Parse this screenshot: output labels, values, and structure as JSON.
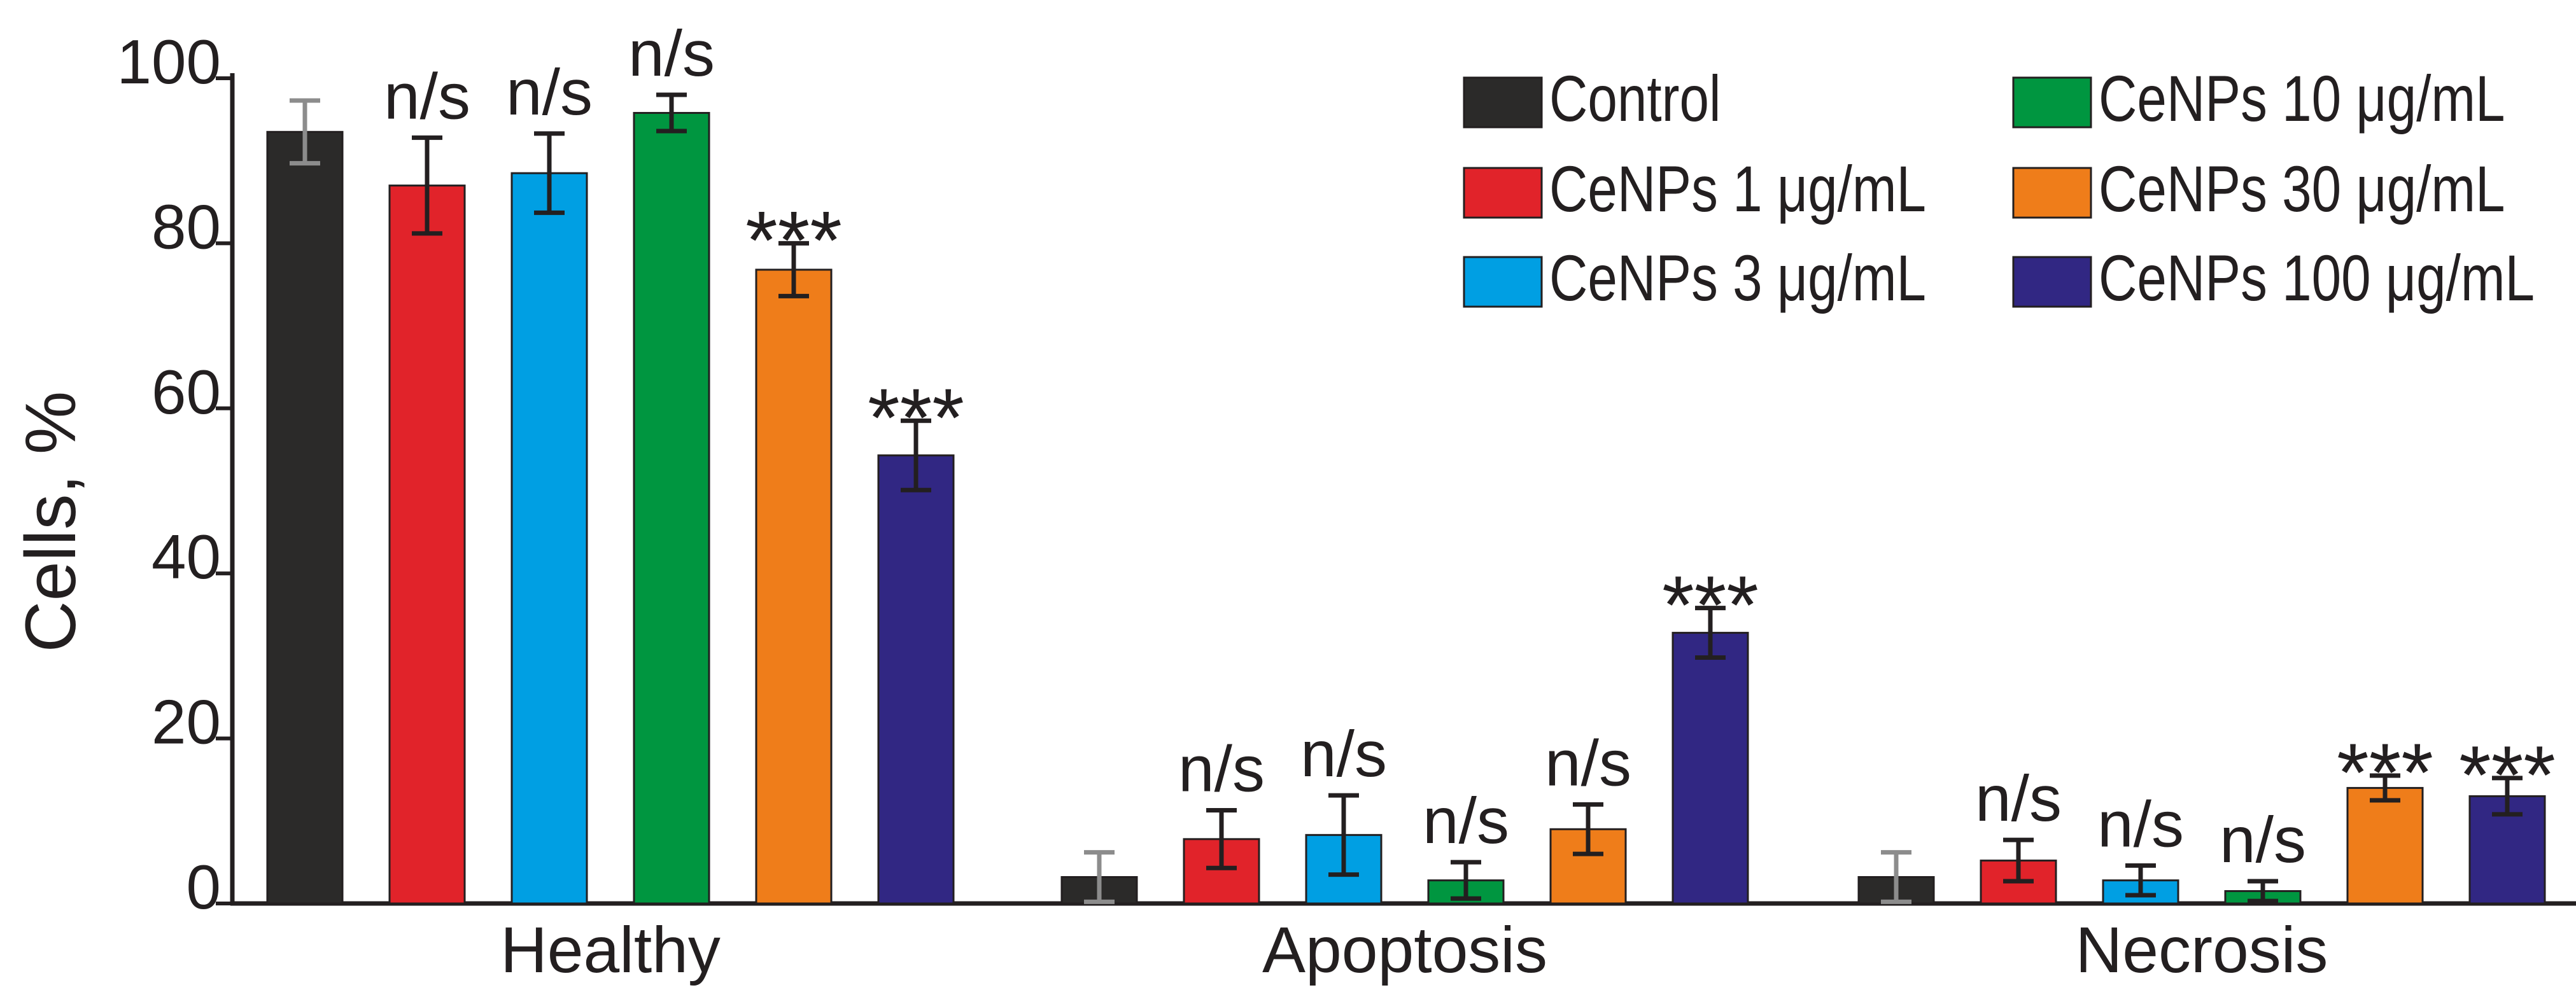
{
  "chart_data": {
    "type": "bar",
    "title": "",
    "xlabel": "",
    "ylabel": "Cells, %",
    "ylim": [
      0,
      100
    ],
    "yticks": [
      "0",
      "20",
      "40",
      "60",
      "80",
      "100"
    ],
    "ytick_values": [
      0,
      20,
      40,
      60,
      80,
      100
    ],
    "grid": false,
    "legend_position": "top-right",
    "categories": [
      "Healthy",
      "Apoptosis",
      "Necrosis"
    ],
    "series": [
      {
        "name": "Control",
        "color": "#2b2a29",
        "err_color": "#8c8c8c",
        "values": [
          93.5,
          3.2,
          3.2
        ],
        "errors": [
          3.8,
          3.0,
          3.0
        ],
        "annotations": [
          "",
          "",
          ""
        ]
      },
      {
        "name": "CeNPs 1 μg/mL",
        "color": "#e1232a",
        "err_color": "#231f20",
        "values": [
          87,
          7.8,
          5.2
        ],
        "errors": [
          5.8,
          3.5,
          2.5
        ],
        "annotations": [
          "n/s",
          "n/s",
          "n/s"
        ]
      },
      {
        "name": "CeNPs 3 μg/mL",
        "color": "#009fe3",
        "err_color": "#231f20",
        "values": [
          88.5,
          8.3,
          2.8
        ],
        "errors": [
          4.8,
          4.8,
          1.8
        ],
        "annotations": [
          "n/s",
          "n/s",
          "n/s"
        ]
      },
      {
        "name": "CeNPs 10 μg/mL",
        "color": "#009640",
        "err_color": "#231f20",
        "values": [
          95.8,
          2.8,
          1.5
        ],
        "errors": [
          2.2,
          2.2,
          1.2
        ],
        "annotations": [
          "n/s",
          "n/s",
          "n/s"
        ]
      },
      {
        "name": "CeNPs 30 μg/mL",
        "color": "#ef7d1a",
        "err_color": "#231f20",
        "values": [
          76.8,
          9.0,
          14.0
        ],
        "errors": [
          3.2,
          3.0,
          1.5
        ],
        "annotations": [
          "***",
          "n/s",
          "***"
        ]
      },
      {
        "name": "CeNPs 100 μg/mL",
        "color": "#312783",
        "err_color": "#231f20",
        "values": [
          54.3,
          32.8,
          13.0
        ],
        "errors": [
          4.2,
          3.0,
          2.2
        ],
        "annotations": [
          "***",
          "***",
          "***"
        ]
      }
    ]
  }
}
